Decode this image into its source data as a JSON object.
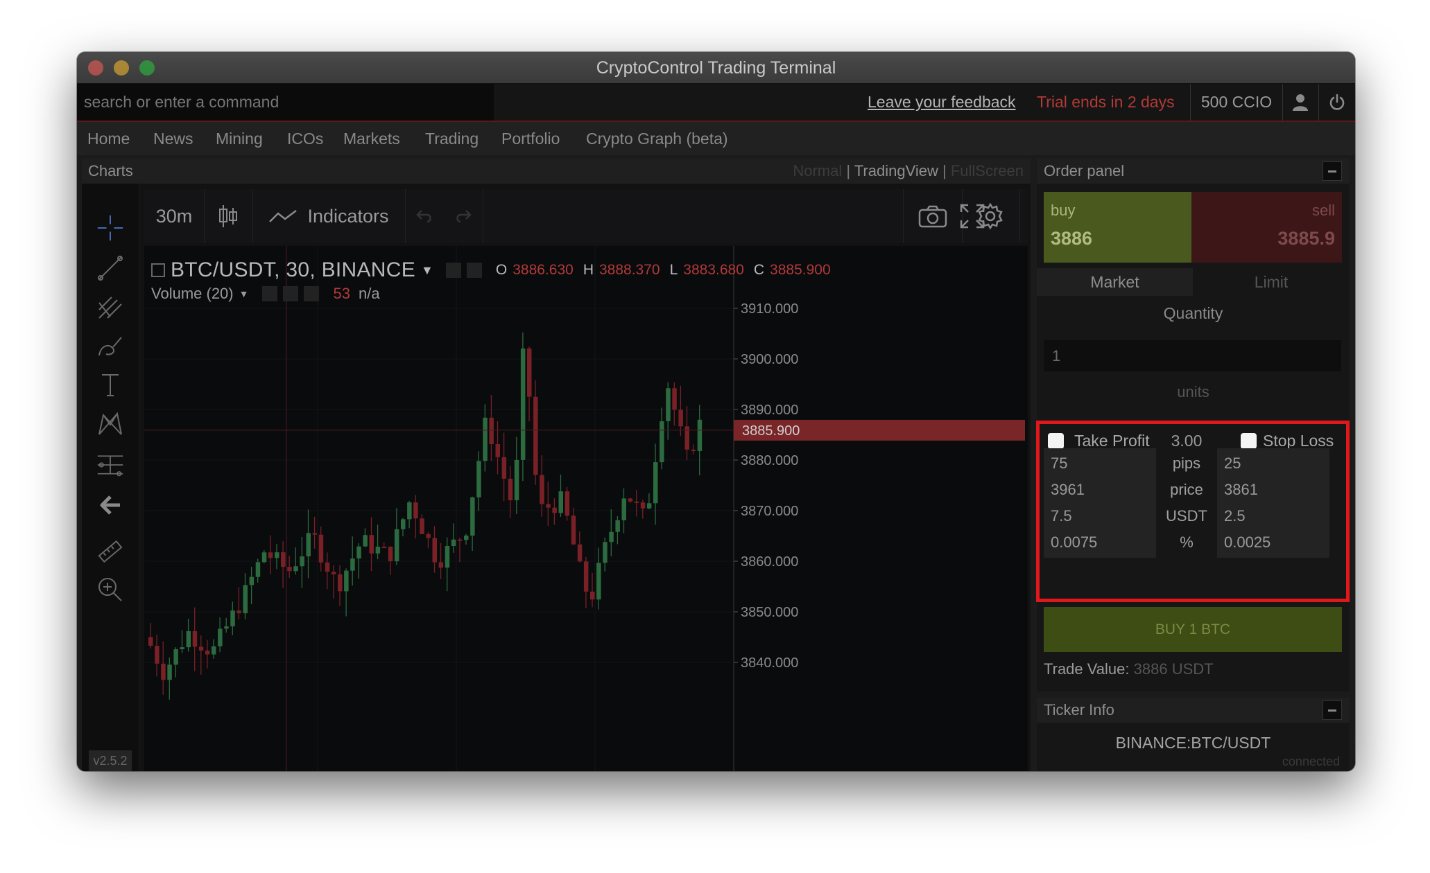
{
  "window": {
    "title": "CryptoControl Trading Terminal"
  },
  "topbar": {
    "search_placeholder": "search or enter a command",
    "feedback_label": "Leave your feedback",
    "trial_text": "Trial ends in 2 days",
    "coins_text": "500 CCIO"
  },
  "nav": {
    "items": [
      "Home",
      "News",
      "Mining",
      "ICOs",
      "Markets",
      "Trading",
      "Portfolio",
      "Crypto Graph (beta)"
    ]
  },
  "charts": {
    "title": "Charts",
    "view_normal": "Normal",
    "view_tradingview": "TradingView",
    "view_fullscreen": "FullScreen",
    "separator": "|",
    "version": "v2.5.2"
  },
  "toolbar": {
    "interval": "30m",
    "indicators_label": "Indicators"
  },
  "chart": {
    "symbol": "BTC/USDT, 30, BINANCE",
    "ohlc": {
      "o_label": "O",
      "o": "3886.630",
      "h_label": "H",
      "h": "3888.370",
      "l_label": "L",
      "l": "3883.680",
      "c_label": "C",
      "c": "3885.900"
    },
    "volume_label": "Volume (20)",
    "volume_value": "53",
    "volume_na": "n/a",
    "last_price_label": "3885.900",
    "price_ticks": [
      "3910.000",
      "3900.000",
      "3890.000",
      "3880.000",
      "3870.000",
      "3860.000",
      "3850.000",
      "3840.000"
    ],
    "colors": {
      "up": "#2c6a3f",
      "down": "#7a2027",
      "crosshair": "#4a1a1e"
    }
  },
  "order_panel": {
    "title": "Order panel",
    "buy_label": "buy",
    "buy_price": "3886",
    "sell_label": "sell",
    "sell_price": "3885.9",
    "tab_market": "Market",
    "tab_limit": "Limit",
    "quantity_label": "Quantity",
    "quantity_value": "1",
    "units_label": "units",
    "take_profit_label": "Take Profit",
    "ratio": "3.00",
    "stop_loss_label": "Stop Loss",
    "rows": [
      {
        "tp": "75",
        "label": "pips",
        "sl": "25"
      },
      {
        "tp": "3961",
        "label": "price",
        "sl": "3861"
      },
      {
        "tp": "7.5",
        "label": "USDT",
        "sl": "2.5"
      },
      {
        "tp": "0.0075",
        "label": "%",
        "sl": "0.0025"
      }
    ],
    "buy_button": "BUY 1 BTC",
    "trade_value_label": "Trade Value:",
    "trade_value": "3886 USDT"
  },
  "ticker": {
    "title": "Ticker Info",
    "symbol": "BINANCE:BTC/USDT",
    "status": "connected"
  }
}
